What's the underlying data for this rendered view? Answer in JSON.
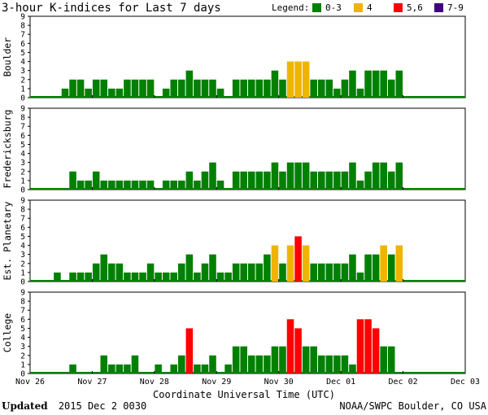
{
  "chart_data": {
    "type": "bar",
    "title": "3-hour K-indices for Last 7 days",
    "legend": {
      "label": "Legend:",
      "placement": "top-right",
      "entries": [
        {
          "label": "0-3",
          "color": "#008000"
        },
        {
          "label": "4",
          "color": "#f0b400"
        },
        {
          "label": "5,6",
          "color": "#ff0000"
        },
        {
          "label": "7-9",
          "color": "#400080"
        }
      ]
    },
    "xlabel": "Coordinate Universal Time (UTC)",
    "x_tick_labels": [
      "Nov 26",
      "Nov 27",
      "Nov 28",
      "Nov 29",
      "Nov 30",
      "Dec 01",
      "Dec 02",
      "Dec 03"
    ],
    "interval": "3-hour",
    "ylim": [
      0,
      9
    ],
    "y_ticks": [
      "0",
      "1",
      "2",
      "3",
      "4",
      "5",
      "6",
      "7",
      "8",
      "9"
    ],
    "series": [
      {
        "name": "Boulder",
        "values": [
          0,
          0,
          0,
          0,
          1,
          2,
          2,
          1,
          2,
          2,
          1,
          1,
          2,
          2,
          2,
          2,
          0,
          1,
          2,
          2,
          3,
          2,
          2,
          2,
          1,
          0,
          2,
          2,
          2,
          2,
          2,
          3,
          2,
          4,
          4,
          4,
          2,
          2,
          2,
          1,
          2,
          3,
          1,
          3,
          3,
          3,
          2,
          3,
          0,
          0,
          0,
          0,
          0,
          0,
          0,
          0
        ]
      },
      {
        "name": "Fredericksburg",
        "values": [
          0,
          0,
          0,
          0,
          0,
          2,
          1,
          1,
          2,
          1,
          1,
          1,
          1,
          1,
          1,
          1,
          0,
          1,
          1,
          1,
          2,
          1,
          2,
          3,
          1,
          0,
          2,
          2,
          2,
          2,
          2,
          3,
          2,
          3,
          3,
          3,
          2,
          2,
          2,
          2,
          2,
          3,
          1,
          2,
          3,
          3,
          2,
          3,
          0,
          0,
          0,
          0,
          0,
          0,
          0,
          0
        ]
      },
      {
        "name": "Est. Planetary",
        "values": [
          0,
          0,
          0,
          1,
          0,
          1,
          1,
          1,
          2,
          3,
          2,
          2,
          1,
          1,
          1,
          2,
          1,
          1,
          1,
          2,
          3,
          1,
          2,
          3,
          1,
          1,
          2,
          2,
          2,
          2,
          3,
          4,
          2,
          4,
          5,
          4,
          2,
          2,
          2,
          2,
          2,
          3,
          1,
          3,
          3,
          4,
          3,
          4,
          0,
          0,
          0,
          0,
          0,
          0,
          0,
          0
        ]
      },
      {
        "name": "College",
        "values": [
          0,
          0,
          0,
          0,
          0,
          1,
          0,
          0,
          0,
          2,
          1,
          1,
          1,
          2,
          0,
          0,
          1,
          0,
          1,
          2,
          5,
          1,
          1,
          2,
          0,
          1,
          3,
          3,
          2,
          2,
          2,
          3,
          3,
          6,
          5,
          3,
          3,
          2,
          2,
          2,
          2,
          1,
          6,
          6,
          5,
          3,
          3,
          0,
          0,
          0,
          0,
          0,
          0,
          0,
          0,
          0
        ]
      }
    ]
  },
  "footer": {
    "updated_label": "Updated",
    "updated_value": "2015 Dec  2 0030",
    "credit": "NOAA/SWPC Boulder, CO USA"
  }
}
